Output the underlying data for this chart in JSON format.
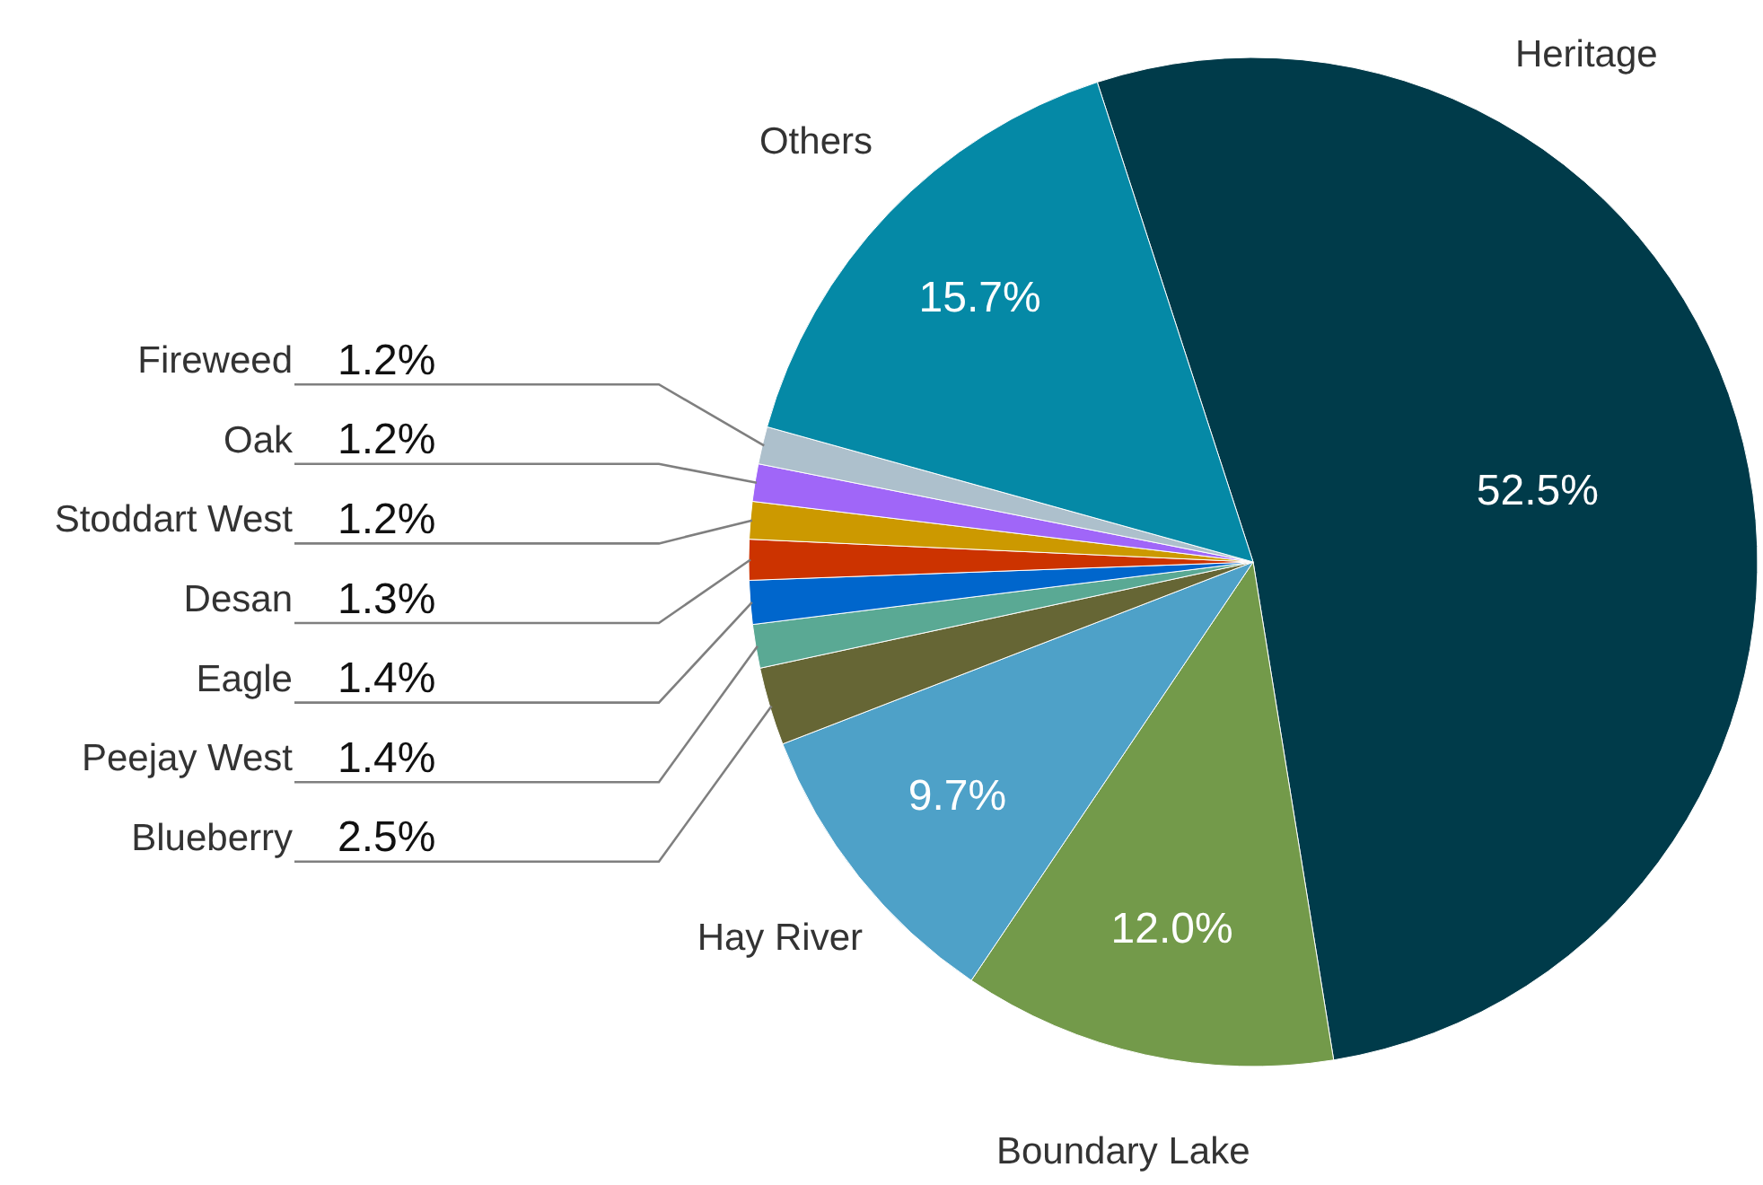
{
  "chart_data": {
    "type": "pie",
    "categories": [
      "Heritage",
      "Boundary Lake",
      "Hay River",
      "Blueberry",
      "Peejay West",
      "Eagle",
      "Desan",
      "Stoddart West",
      "Oak",
      "Fireweed",
      "Others"
    ],
    "values": [
      52.5,
      12.0,
      9.7,
      2.5,
      1.4,
      1.4,
      1.3,
      1.2,
      1.2,
      1.2,
      15.7
    ],
    "value_labels": [
      "52.5%",
      "12.0%",
      "9.7%",
      "2.5%",
      "1.4%",
      "1.4%",
      "1.3%",
      "1.2%",
      "1.2%",
      "1.2%",
      "15.7%"
    ],
    "colors": [
      "#003b4a",
      "#739a4a",
      "#4ea1c8",
      "#666635",
      "#5aa994",
      "#0066cc",
      "#cc3300",
      "#cc9900",
      "#a066f8",
      "#adc0cc",
      "#0589a6"
    ]
  }
}
